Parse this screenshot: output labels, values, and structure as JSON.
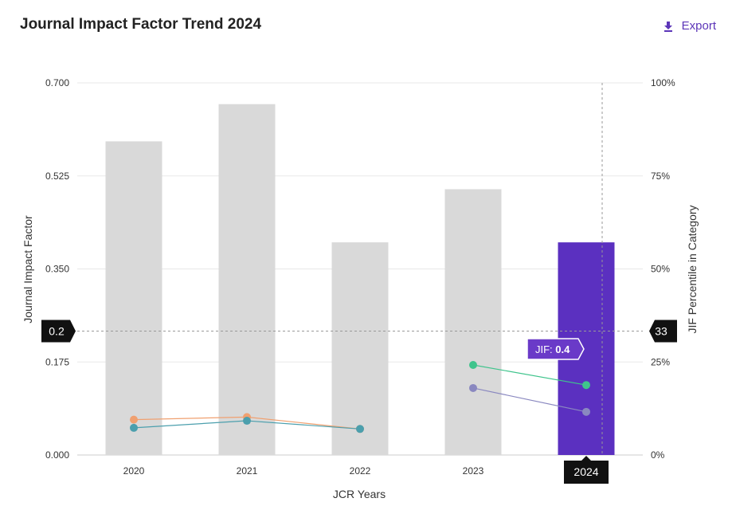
{
  "header": {
    "title": "Journal Impact Factor Trend 2024",
    "export_label": "Export",
    "export_icon": "download-icon"
  },
  "colors": {
    "bar": "#d9d9d9",
    "bar_active": "#5b30c0",
    "series_orange": "#f0a070",
    "series_teal": "#4b9fad",
    "series_green": "#3fc48c",
    "series_purple": "#8a88c0",
    "badge": "#111111",
    "tooltip": "#6a3ac8"
  },
  "chart_data": {
    "type": "bar",
    "title": "Journal Impact Factor Trend 2024",
    "xlabel": "JCR Years",
    "ylabel": "Journal Impact Factor",
    "ylabel_right": "JIF Percentile in Category",
    "categories": [
      "2020",
      "2021",
      "2022",
      "2023",
      "2024"
    ],
    "ylim": [
      0,
      0.7
    ],
    "yticks": [
      "0.000",
      "0.175",
      "0.350",
      "0.525",
      "0.700"
    ],
    "ylim_right": [
      0,
      100
    ],
    "yticks_right": [
      "0%",
      "25%",
      "50%",
      "75%",
      "100%"
    ],
    "values": [
      0.59,
      0.66,
      0.4,
      0.5,
      0.4
    ],
    "highlight_index": 4,
    "percentile_series": [
      {
        "name": "orange",
        "color_key": "series_orange",
        "values": [
          9.5,
          10.2,
          7.0,
          null,
          null
        ]
      },
      {
        "name": "teal",
        "color_key": "series_teal",
        "values": [
          7.3,
          9.2,
          7.0,
          null,
          null
        ]
      },
      {
        "name": "green",
        "color_key": "series_green",
        "values": [
          null,
          null,
          null,
          24.2,
          18.8
        ]
      },
      {
        "name": "purple",
        "color_key": "series_purple",
        "values": [
          null,
          null,
          null,
          18.0,
          11.6
        ]
      }
    ],
    "crosshair": {
      "left_label": "0.2",
      "right_label": "33",
      "x_label": "2024",
      "value": 0.233
    },
    "tooltip": {
      "label": "JIF:",
      "value": "0.4"
    }
  }
}
